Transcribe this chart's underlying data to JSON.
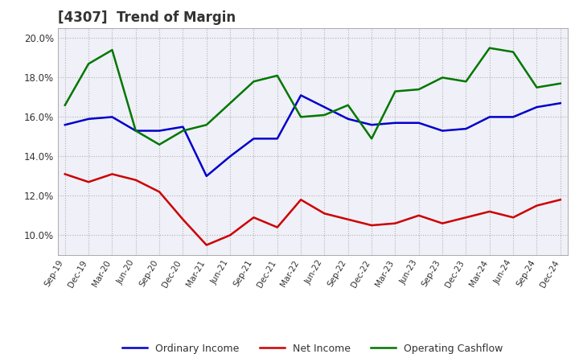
{
  "title": "[4307]  Trend of Margin",
  "x_labels": [
    "Sep-19",
    "Dec-19",
    "Mar-20",
    "Jun-20",
    "Sep-20",
    "Dec-20",
    "Mar-21",
    "Jun-21",
    "Sep-21",
    "Dec-21",
    "Mar-22",
    "Jun-22",
    "Sep-22",
    "Dec-22",
    "Mar-23",
    "Jun-23",
    "Sep-23",
    "Dec-23",
    "Mar-24",
    "Jun-24",
    "Sep-24",
    "Dec-24"
  ],
  "ordinary_income": [
    15.6,
    15.9,
    16.0,
    15.3,
    15.3,
    15.5,
    13.0,
    14.0,
    14.9,
    14.9,
    17.1,
    16.5,
    15.9,
    15.6,
    15.7,
    15.7,
    15.3,
    15.4,
    16.0,
    16.0,
    16.5,
    16.7
  ],
  "net_income": [
    13.1,
    12.7,
    13.1,
    12.8,
    12.2,
    10.8,
    9.5,
    10.0,
    10.9,
    10.4,
    11.8,
    11.1,
    10.8,
    10.5,
    10.6,
    11.0,
    10.6,
    10.9,
    11.2,
    10.9,
    11.5,
    11.8
  ],
  "operating_cashflow": [
    16.6,
    18.7,
    19.4,
    15.3,
    14.6,
    15.3,
    15.6,
    16.7,
    17.8,
    18.1,
    16.0,
    16.1,
    16.6,
    14.9,
    17.3,
    17.4,
    18.0,
    17.8,
    19.5,
    19.3,
    17.5,
    17.7
  ],
  "line_colors": {
    "ordinary_income": "#0000cc",
    "net_income": "#cc0000",
    "operating_cashflow": "#007700"
  },
  "ylim": [
    9.0,
    20.5
  ],
  "yticks": [
    10.0,
    12.0,
    14.0,
    16.0,
    18.0,
    20.0
  ],
  "ytick_labels": [
    "10.0%",
    "12.0%",
    "14.0%",
    "16.0%",
    "18.0%",
    "20.0%"
  ],
  "background_color": "#ffffff",
  "plot_bg_color": "#f0f0f8",
  "grid_color": "#aaaaaa",
  "title_color": "#333333",
  "tick_color": "#333333",
  "legend_labels": [
    "Ordinary Income",
    "Net Income",
    "Operating Cashflow"
  ]
}
